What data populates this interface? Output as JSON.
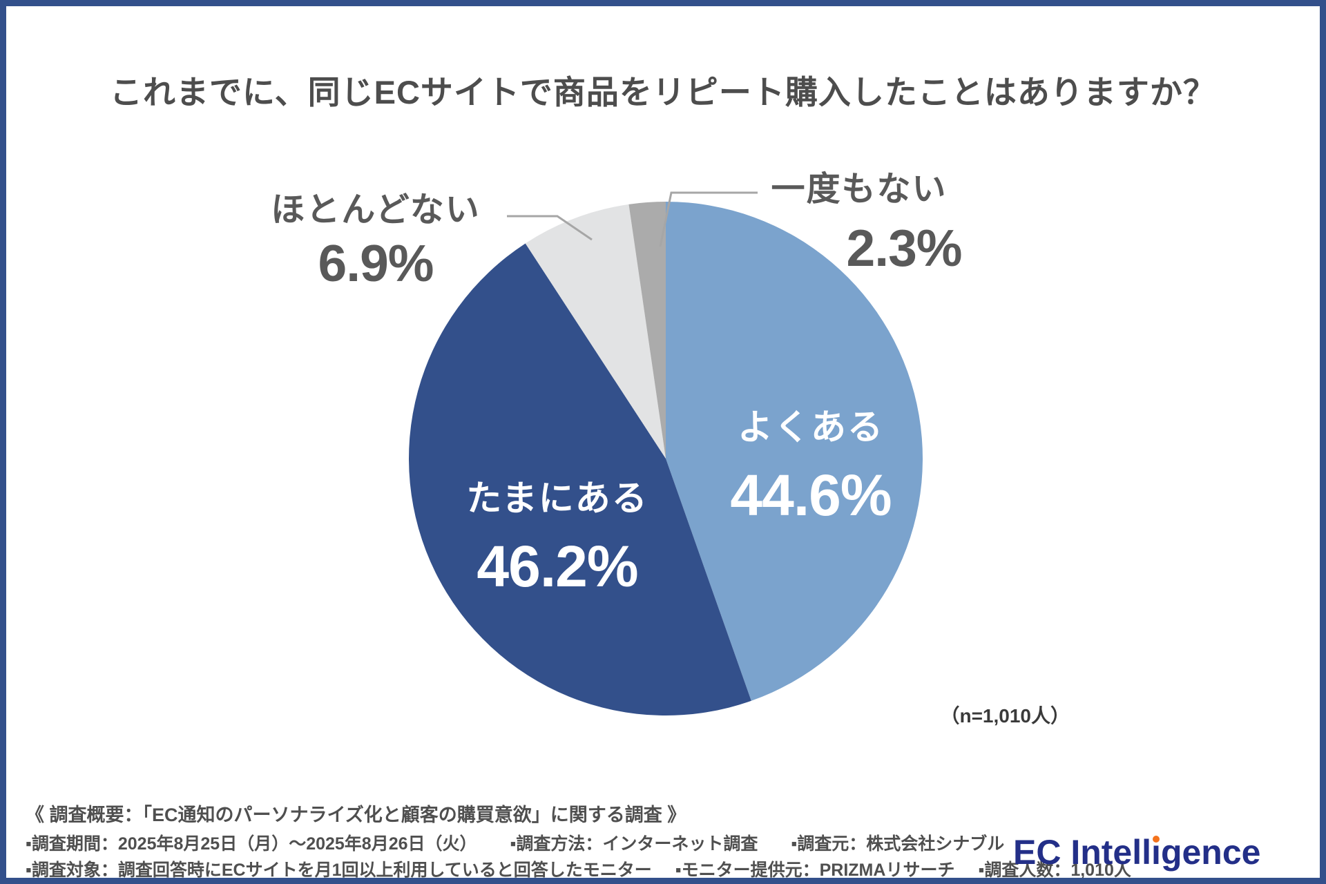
{
  "chart_data": {
    "type": "pie",
    "title": "これまでに、同じECサイトで商品をリピート購入したことはありますか？",
    "n_label": "（n=1,010人）",
    "start_angle_deg": 0,
    "direction": "clockwise",
    "legend_position": "none",
    "slices": [
      {
        "id": "yoku-aru",
        "label": "よくある",
        "value": 44.6,
        "pct_label": "44.6%",
        "color": "#7BA3CD",
        "label_placement": "inside",
        "label_color": "#FFFFFF"
      },
      {
        "id": "tamani-aru",
        "label": "たまにある",
        "value": 46.2,
        "pct_label": "46.2%",
        "color": "#33508B",
        "label_placement": "inside",
        "label_color": "#FFFFFF"
      },
      {
        "id": "hotondo-nai",
        "label": "ほとんどない",
        "value": 6.9,
        "pct_label": "6.9%",
        "color": "#E2E3E4",
        "label_placement": "outside",
        "label_color": "#595959"
      },
      {
        "id": "ichido-mo-nai",
        "label": "一度もない",
        "value": 2.3,
        "pct_label": "2.3%",
        "color": "#ABABAB",
        "label_placement": "outside",
        "label_color": "#595959"
      }
    ]
  },
  "footer": {
    "summary": "《 調査概要：「EC通知のパーソナライズ化と顧客の購買意欲」に関する調査 》",
    "line2": [
      "▪調査期間：2025年8月25日（月）～2025年8月26日（火）",
      "▪調査方法：インターネット調査",
      "▪調査元：株式会社シナブル"
    ],
    "line3": [
      "▪調査対象：調査回答時にECサイトを月1回以上利用していると回答したモニター",
      "▪モニター提供元：PRIZMAリサーチ",
      "▪調査人数：1,010人"
    ]
  },
  "logo": {
    "part1": "EC Intell",
    "dotless_i": "ı",
    "part2": "gence",
    "text_color": "#232F88",
    "dot_color": "#F4731C"
  },
  "colors": {
    "frame": "#33508B",
    "leader_line": "#A6A6A6",
    "title_text": "#4D4D4D",
    "label_text": "#595959"
  }
}
